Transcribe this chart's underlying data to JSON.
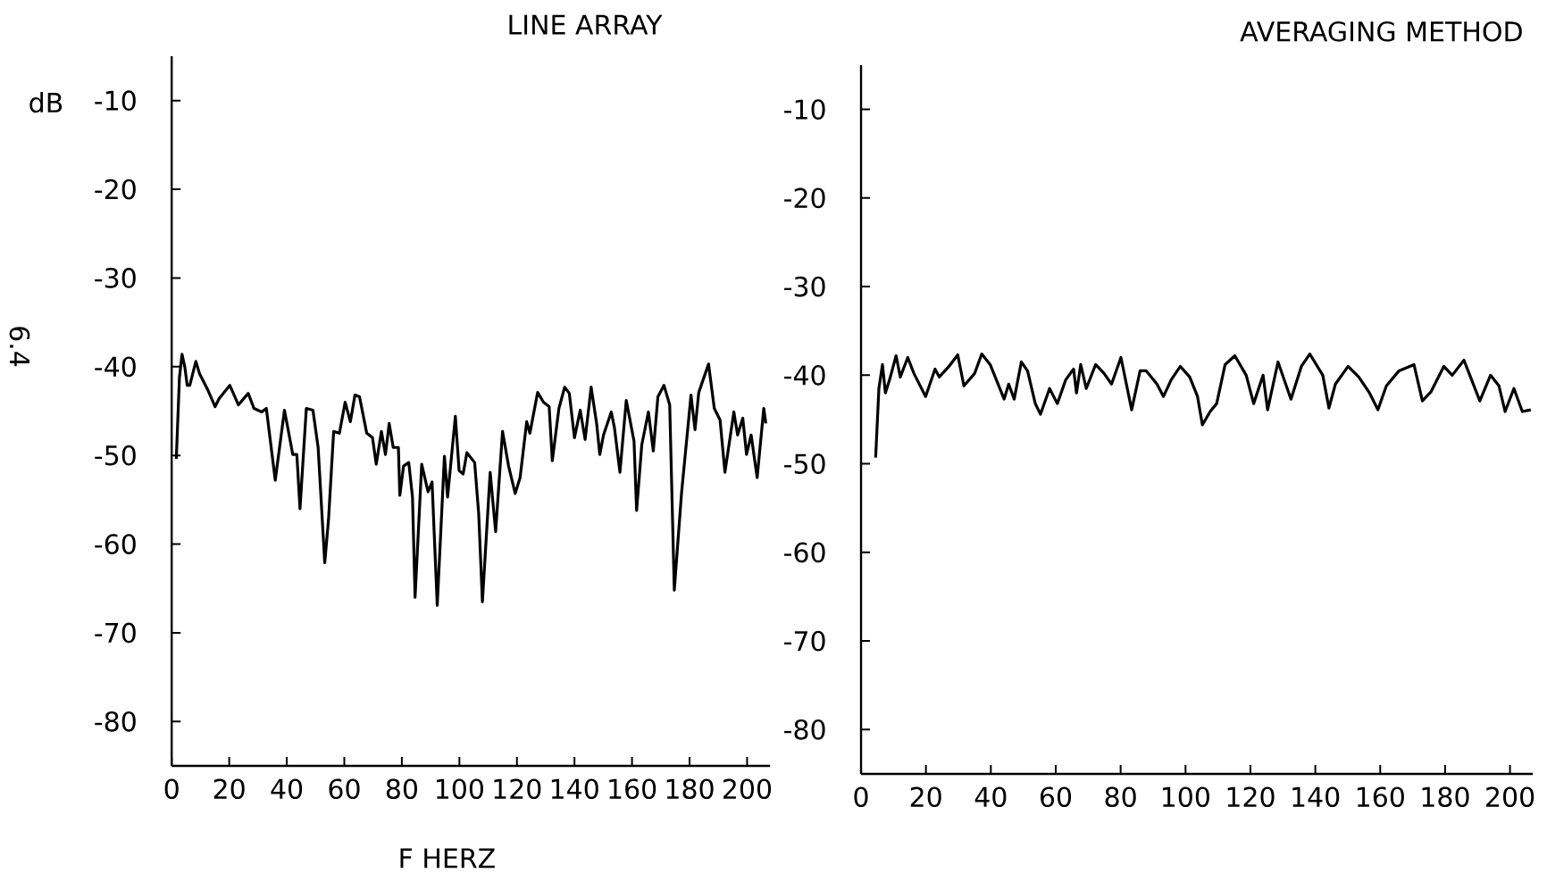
{
  "chart_data": [
    {
      "type": "line",
      "title": "LINE ARRAY",
      "xlabel": "F HERZ",
      "ylabel": "dB",
      "annotations": [
        "6.4"
      ],
      "xlim": [
        0,
        208
      ],
      "ylim": [
        -85,
        -5
      ],
      "xticks": [
        0,
        20,
        40,
        60,
        80,
        100,
        120,
        140,
        160,
        180,
        200
      ],
      "yticks": [
        -80,
        -70,
        -60,
        -50,
        -40,
        -30,
        -20,
        -10
      ],
      "series": [
        {
          "color": "#000000",
          "x": [
            1.6,
            2.7,
            3.6,
            4.6,
            5.4,
            6.3,
            8.4,
            9.7,
            12.4,
            15.1,
            16.5,
            20.2,
            23.2,
            26.6,
            28.6,
            31.3,
            32.9,
            36.0,
            39.2,
            42.1,
            43.5,
            44.6,
            46.8,
            49.1,
            50.9,
            53.2,
            54.5,
            56.3,
            58.3,
            60.3,
            62.1,
            63.7,
            65.3,
            67.8,
            69.8,
            71.1,
            72.9,
            74.3,
            75.6,
            77.0,
            78.8,
            79.3,
            80.6,
            82.4,
            83.7,
            84.6,
            86.9,
            89.1,
            90.5,
            92.3,
            94.8,
            95.9,
            98.6,
            99.9,
            101.3,
            102.6,
            105.3,
            106.7,
            108.0,
            110.7,
            112.6,
            115.0,
            117.1,
            119.4,
            121.1,
            123.4,
            124.5,
            127.2,
            129.2,
            131.2,
            132.3,
            134.6,
            136.6,
            138.2,
            140.0,
            142.0,
            143.7,
            145.8,
            147.7,
            148.8,
            150.1,
            152.8,
            153.9,
            155.8,
            158.0,
            160.7,
            161.6,
            163.4,
            165.7,
            167.4,
            169.0,
            171.1,
            173.1,
            174.7,
            177.2,
            180.5,
            181.9,
            183.2,
            186.6,
            188.6,
            190.6,
            192.3,
            195.4,
            196.7,
            198.5,
            199.8,
            201.4,
            203.5,
            205.8,
            206.5
          ],
          "values": [
            -50.4,
            -41.2,
            -38.6,
            -40.1,
            -42.1,
            -42.1,
            -39.4,
            -40.8,
            -42.5,
            -44.5,
            -43.6,
            -42.1,
            -44.3,
            -43.0,
            -44.7,
            -45.1,
            -44.7,
            -52.8,
            -44.9,
            -49.9,
            -49.9,
            -56.0,
            -44.7,
            -44.9,
            -49.1,
            -62.1,
            -57.3,
            -47.3,
            -47.5,
            -44.0,
            -46.2,
            -43.2,
            -43.4,
            -47.5,
            -48.0,
            -51.0,
            -47.3,
            -49.9,
            -46.4,
            -49.1,
            -49.1,
            -54.5,
            -51.2,
            -50.8,
            -54.7,
            -66.0,
            -51.0,
            -54.1,
            -53.0,
            -66.9,
            -50.1,
            -54.7,
            -45.6,
            -51.7,
            -52.1,
            -49.7,
            -50.8,
            -56.5,
            -66.5,
            -51.9,
            -58.6,
            -47.3,
            -51.2,
            -54.3,
            -52.5,
            -46.2,
            -47.5,
            -42.9,
            -44.0,
            -44.5,
            -50.6,
            -44.7,
            -42.3,
            -43.0,
            -48.0,
            -44.9,
            -48.2,
            -42.3,
            -46.4,
            -49.9,
            -47.7,
            -45.1,
            -46.9,
            -51.9,
            -43.8,
            -48.4,
            -56.2,
            -48.8,
            -45.1,
            -49.5,
            -43.4,
            -42.1,
            -44.3,
            -65.2,
            -54.3,
            -43.2,
            -47.1,
            -42.9,
            -39.7,
            -44.7,
            -46.0,
            -51.9,
            -45.1,
            -47.7,
            -45.8,
            -49.9,
            -47.7,
            -52.5,
            -44.7,
            -46.4
          ]
        }
      ]
    },
    {
      "type": "line",
      "title": "AVERAGING METHOD",
      "xlim": [
        0,
        207
      ],
      "ylim": [
        -85,
        -5
      ],
      "xticks": [
        0,
        20,
        40,
        60,
        80,
        100,
        120,
        140,
        160,
        180,
        200
      ],
      "yticks": [
        -80,
        -70,
        -60,
        -50,
        -40,
        -30,
        -20,
        -10
      ],
      "series": [
        {
          "color": "#000000",
          "x": [
            4.5,
            5.5,
            6.6,
            7.5,
            8.8,
            10.8,
            12.1,
            14.4,
            16.3,
            19.9,
            22.8,
            24.1,
            27.1,
            29.8,
            31.7,
            35.0,
            37.2,
            39.8,
            44.1,
            45.5,
            47.2,
            49.4,
            51.3,
            53.7,
            55.3,
            58.1,
            60.5,
            63.1,
            65.5,
            66.4,
            67.7,
            69.4,
            72.3,
            74.9,
            77.2,
            80.1,
            83.4,
            86.0,
            87.9,
            91.2,
            93.2,
            95.6,
            98.4,
            101.3,
            103.7,
            105.2,
            107.6,
            109.6,
            112.2,
            115.2,
            118.7,
            121.0,
            123.9,
            125.3,
            128.5,
            132.5,
            135.7,
            138.3,
            142.3,
            144.2,
            146.2,
            150.1,
            153.4,
            156.7,
            159.3,
            161.9,
            165.8,
            170.4,
            173.0,
            175.6,
            179.6,
            182.2,
            185.8,
            187.4,
            190.7,
            194.0,
            196.6,
            198.5,
            201.2,
            203.8,
            206.4
          ],
          "values": [
            -49.3,
            -41.5,
            -38.8,
            -42.0,
            -40.5,
            -37.8,
            -40.2,
            -38.0,
            -39.8,
            -42.4,
            -39.3,
            -40.2,
            -39.0,
            -37.7,
            -41.2,
            -39.8,
            -37.6,
            -38.8,
            -42.7,
            -41.0,
            -42.7,
            -38.5,
            -39.5,
            -43.2,
            -44.4,
            -41.5,
            -43.2,
            -40.5,
            -39.3,
            -42.0,
            -38.8,
            -41.5,
            -38.8,
            -39.8,
            -41.0,
            -38.0,
            -43.9,
            -39.5,
            -39.5,
            -41.0,
            -42.4,
            -40.5,
            -39.0,
            -40.2,
            -42.4,
            -45.6,
            -44.1,
            -43.2,
            -38.8,
            -37.8,
            -40.0,
            -43.2,
            -40.0,
            -43.9,
            -38.5,
            -42.7,
            -39.0,
            -37.6,
            -40.0,
            -43.7,
            -41.0,
            -39.0,
            -40.2,
            -42.0,
            -43.9,
            -41.2,
            -39.5,
            -38.8,
            -42.9,
            -41.9,
            -39.0,
            -40.0,
            -38.3,
            -39.8,
            -42.9,
            -40.0,
            -41.2,
            -44.1,
            -41.5,
            -44.1,
            -43.9
          ]
        }
      ]
    }
  ]
}
